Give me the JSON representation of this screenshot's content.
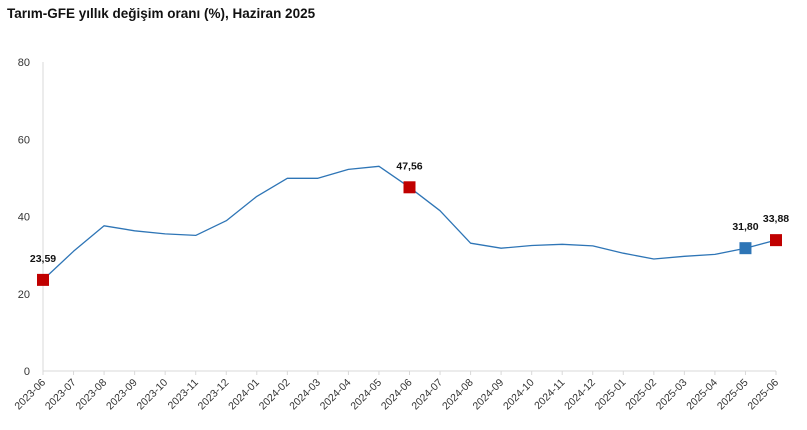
{
  "chart_data": {
    "type": "line",
    "title": "Tarım-GFE yıllık değişim oranı (%), Haziran 2025",
    "xlabel": "",
    "ylabel": "",
    "ylim": [
      0,
      80
    ],
    "yticks": [
      0,
      20,
      40,
      60,
      80
    ],
    "grid": false,
    "categories": [
      "2023-06",
      "2023-07",
      "2023-08",
      "2023-09",
      "2023-10",
      "2023-11",
      "2023-12",
      "2024-01",
      "2024-02",
      "2024-03",
      "2024-04",
      "2024-05",
      "2024-06",
      "2024-07",
      "2024-08",
      "2024-09",
      "2024-10",
      "2024-11",
      "2024-12",
      "2025-01",
      "2025-02",
      "2025-03",
      "2025-04",
      "2025-05",
      "2025-06"
    ],
    "series": [
      {
        "values": [
          23.59,
          31.0,
          37.6,
          36.3,
          35.5,
          35.1,
          38.9,
          45.2,
          49.9,
          49.9,
          52.2,
          53.0,
          47.56,
          41.5,
          33.1,
          31.8,
          32.5,
          32.8,
          32.4,
          30.5,
          29.0,
          29.7,
          30.2,
          31.8,
          33.88
        ],
        "color": "#2E75B6"
      }
    ],
    "annotations": [
      {
        "category": "2023-06",
        "label": "23,59",
        "marker_color": "#C00000"
      },
      {
        "category": "2024-06",
        "label": "47,56",
        "marker_color": "#C00000"
      },
      {
        "category": "2025-05",
        "label": "31,80",
        "marker_color": "#2E75B6"
      },
      {
        "category": "2025-06",
        "label": "33,88",
        "marker_color": "#C00000"
      }
    ]
  }
}
